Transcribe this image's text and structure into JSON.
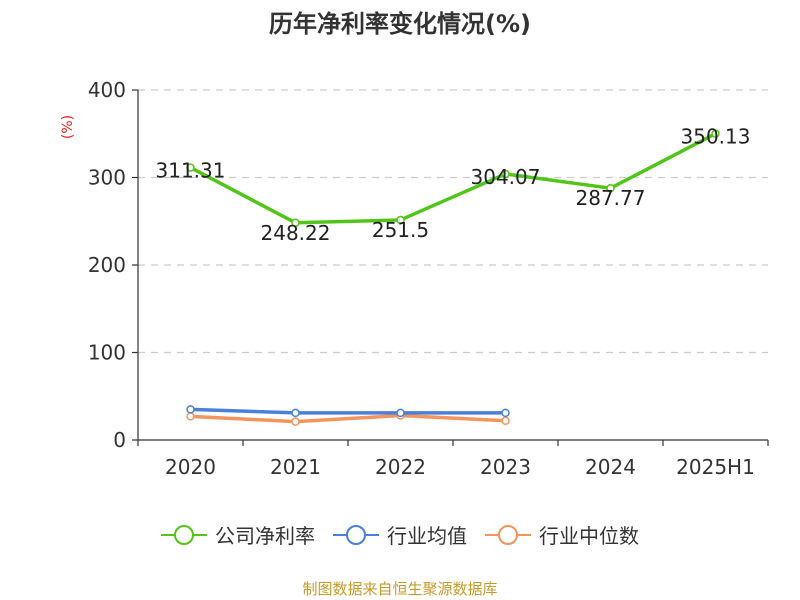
{
  "title": "历年净利率变化情况(%)",
  "source": "制图数据来自恒生聚源数据库",
  "colors": {
    "company": "#52c41a",
    "industry_avg": "#4a7fdc",
    "industry_median": "#f5945c"
  },
  "chart_data": {
    "type": "line",
    "title": "历年净利率变化情况(%)",
    "ylabel": "(%)",
    "xlabel": "",
    "categories": [
      "2020",
      "2021",
      "2022",
      "2023",
      "2024",
      "2025H1"
    ],
    "ylim": [
      0,
      400
    ],
    "yticks": [
      0,
      100,
      200,
      300,
      400
    ],
    "grid": true,
    "legend_position": "bottom",
    "series": [
      {
        "name": "公司净利率",
        "values": [
          311.31,
          248.22,
          251.5,
          304.07,
          287.77,
          350.13
        ],
        "labels": [
          "311.31",
          "248.22",
          "251.5",
          "304.07",
          "287.77",
          "350.13"
        ]
      },
      {
        "name": "行业均值",
        "values": [
          35,
          31,
          31,
          31,
          null,
          null
        ]
      },
      {
        "name": "行业中位数",
        "values": [
          27,
          21,
          28,
          22,
          null,
          null
        ]
      }
    ]
  },
  "legend": [
    {
      "label": "公司净利率",
      "icon": "circle-line-icon"
    },
    {
      "label": "行业均值",
      "icon": "circle-line-icon"
    },
    {
      "label": "行业中位数",
      "icon": "circle-line-icon"
    }
  ]
}
